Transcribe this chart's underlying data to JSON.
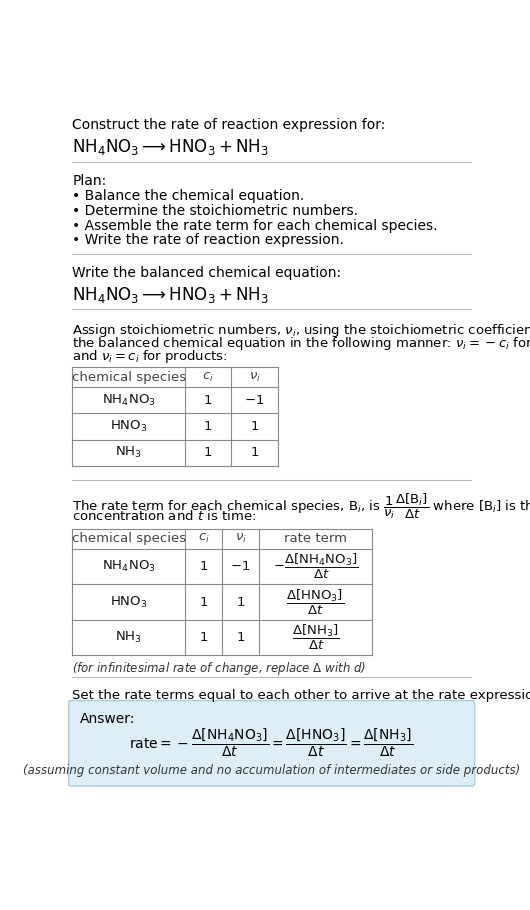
{
  "bg_color": "#ffffff",
  "text_color": "#000000",
  "answer_bg": "#ddeef6",
  "answer_border": "#aaccdd",
  "section1_title": "Construct the rate of reaction expression for:",
  "section1_equation": "$\\mathrm{NH_4NO_3} \\longrightarrow \\mathrm{HNO_3 + NH_3}$",
  "section2_title": "Plan:",
  "section2_bullets": [
    "• Balance the chemical equation.",
    "• Determine the stoichiometric numbers.",
    "• Assemble the rate term for each chemical species.",
    "• Write the rate of reaction expression."
  ],
  "section3_title": "Write the balanced chemical equation:",
  "section3_equation": "$\\mathrm{NH_4NO_3} \\longrightarrow \\mathrm{HNO_3 + NH_3}$",
  "section4_intro_lines": [
    "Assign stoichiometric numbers, $\\nu_i$, using the stoichiometric coefficients, $c_i$, from",
    "the balanced chemical equation in the following manner: $\\nu_i = -c_i$ for reactants",
    "and $\\nu_i = c_i$ for products:"
  ],
  "table1_headers": [
    "chemical species",
    "$c_i$",
    "$\\nu_i$"
  ],
  "table1_rows": [
    [
      "$\\mathrm{NH_4NO_3}$",
      "1",
      "$-1$"
    ],
    [
      "$\\mathrm{HNO_3}$",
      "1",
      "1"
    ],
    [
      "$\\mathrm{NH_3}$",
      "1",
      "1"
    ]
  ],
  "section5_intro_lines": [
    "The rate term for each chemical species, $\\mathrm{B}_i$, is $\\dfrac{1}{\\nu_i}\\dfrac{\\Delta[\\mathrm{B}_i]}{\\Delta t}$ where $[\\mathrm{B}_i]$ is the amount",
    "concentration and $t$ is time:"
  ],
  "table2_headers": [
    "chemical species",
    "$c_i$",
    "$\\nu_i$",
    "rate term"
  ],
  "table2_rows": [
    [
      "$\\mathrm{NH_4NO_3}$",
      "1",
      "$-1$",
      "$-\\dfrac{\\Delta[\\mathrm{NH_4NO_3}]}{\\Delta t}$"
    ],
    [
      "$\\mathrm{HNO_3}$",
      "1",
      "1",
      "$\\dfrac{\\Delta[\\mathrm{HNO_3}]}{\\Delta t}$"
    ],
    [
      "$\\mathrm{NH_3}$",
      "1",
      "1",
      "$\\dfrac{\\Delta[\\mathrm{NH_3}]}{\\Delta t}$"
    ]
  ],
  "infinitesimal_note": "(for infinitesimal rate of change, replace $\\Delta$ with $d$)",
  "section6_intro": "Set the rate terms equal to each other to arrive at the rate expression:",
  "answer_label": "Answer:",
  "answer_rate_eq": "$\\mathrm{rate} = -\\dfrac{\\Delta[\\mathrm{NH_4NO_3}]}{\\Delta t} = \\dfrac{\\Delta[\\mathrm{HNO_3}]}{\\Delta t} = \\dfrac{\\Delta[\\mathrm{NH_3}]}{\\Delta t}$",
  "answer_note": "(assuming constant volume and no accumulation of intermediates or side products)"
}
